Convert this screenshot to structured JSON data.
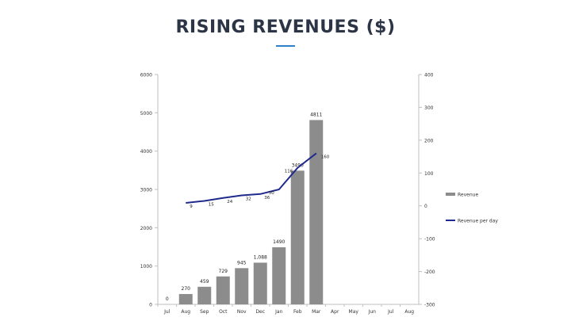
{
  "page": {
    "title": "RISING REVENUES ($)",
    "accent_color": "#2f80c6"
  },
  "chart_data": {
    "type": "bar",
    "categories": [
      "Jul",
      "Aug",
      "Sep",
      "Oct",
      "Nov",
      "Dec",
      "Jan",
      "Feb",
      "Mar",
      "Apr",
      "May",
      "Jun",
      "Jul",
      "Aug"
    ],
    "series": [
      {
        "name": "Revenue",
        "type": "bar",
        "axis": "left",
        "color": "#8c8c8c",
        "values": [
          0,
          270,
          459,
          729,
          945,
          1088,
          1490,
          3490,
          4811,
          null,
          null,
          null,
          null,
          null
        ],
        "labels": [
          "0",
          "270",
          "459",
          "729",
          "945",
          "1,088",
          "1490",
          "3490",
          "4811",
          "",
          "",
          "",
          "",
          ""
        ]
      },
      {
        "name": "Revenue per day",
        "type": "line",
        "axis": "right",
        "color": "#1f2a8c",
        "values": [
          null,
          9,
          15,
          24,
          32,
          36,
          50,
          116,
          160,
          null,
          null,
          null,
          null,
          null
        ],
        "labels": [
          "",
          "9",
          "15",
          "24",
          "32",
          "36",
          "50",
          "116",
          "160",
          "",
          "",
          "",
          "",
          ""
        ]
      }
    ],
    "y_left": {
      "min": 0,
      "max": 6000,
      "ticks": [
        "0",
        "1000",
        "2000",
        "3000",
        "4000",
        "5000",
        "6000"
      ]
    },
    "y_right": {
      "min": -300,
      "max": 400,
      "ticks": [
        "-300",
        "-200",
        "-100",
        "0",
        "100",
        "200",
        "300",
        "400"
      ]
    },
    "legend_position": "right",
    "grid": false
  }
}
